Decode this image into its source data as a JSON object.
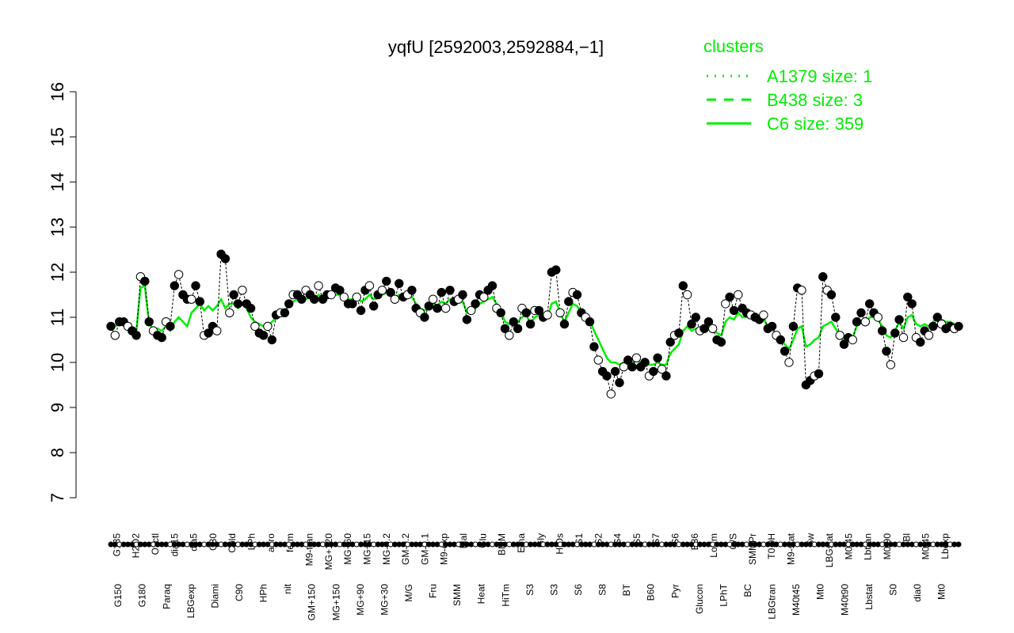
{
  "chart_data": {
    "type": "scatter",
    "title": "yqfU [2592003,2592884,−1]",
    "xlabel": "",
    "ylabel": "",
    "ylim": [
      7,
      16
    ],
    "yticks": [
      7,
      8,
      9,
      10,
      11,
      12,
      13,
      14,
      15,
      16
    ],
    "grid": false,
    "legend": {
      "title": "clusters",
      "position": "top-right",
      "color": "#00ee00",
      "entries": [
        {
          "label": "A1379 size: 1",
          "style": "dotted"
        },
        {
          "label": "B438 size: 3",
          "style": "dashed"
        },
        {
          "label": "C6 size: 359",
          "style": "solid"
        }
      ]
    },
    "top_labels": [
      "G135",
      "H2O2",
      "Oxctl",
      "dia15",
      "dia5",
      "C30",
      "Cold",
      "LPh",
      "aero",
      "ferm",
      "M9-tran",
      "MG+120",
      "MG+60",
      "MG+15",
      "MG-0.2",
      "GM-0.2",
      "GM-0.1",
      "M9-exp",
      "Mal",
      "Glu",
      "BMM",
      "Etha",
      "Gly",
      "HiOs",
      "S1",
      "S2",
      "S4",
      "S5",
      "S7",
      "S6",
      "B36",
      "LoTm",
      "G/S",
      "SMMPr",
      "T0.0H",
      "M9-stat",
      "Sw",
      "LBGstat",
      "M0t45",
      "Lbtran",
      "M0t90",
      "Bl",
      "M0t45",
      "Lbexp"
    ],
    "bottom_labels": [
      "G150",
      "G180",
      "Paraq",
      "LBGexp",
      "Diami",
      "C90",
      "HPh",
      "nit",
      "GM+150",
      "MG+150",
      "MG+90",
      "MG+30",
      "M/G",
      "Fru",
      "SMM",
      "Heat",
      "HiTm",
      "S3",
      "S3",
      "S6",
      "S8",
      "BT",
      "B60",
      "Pyr",
      "Glucon",
      "LPhT",
      "BC",
      "LBGtran",
      "M40t45",
      "Mt0",
      "M40t90",
      "Lbstat",
      "S0",
      "dia0",
      "Mt0"
    ],
    "series": [
      {
        "values": [
          10.8,
          10.6,
          10.9,
          10.9,
          10.8,
          10.7,
          10.6,
          11.9,
          11.8,
          10.9,
          10.7,
          10.6,
          10.55,
          10.9,
          10.8,
          11.7,
          11.95,
          11.5,
          11.4,
          11.4,
          11.7,
          11.35,
          10.6,
          10.65,
          10.8,
          10.7,
          12.4,
          12.3,
          11.1,
          11.5,
          11.3,
          11.6,
          11.3,
          11.2,
          10.8,
          10.65,
          10.6,
          10.8,
          10.5,
          11.05,
          11.1,
          11.1,
          11.3,
          11.5,
          11.5,
          11.4,
          11.6,
          11.5,
          11.4,
          11.7,
          11.4,
          11.5,
          11.5,
          11.65,
          11.6,
          11.45,
          11.3,
          11.3,
          11.45,
          11.15,
          11.6,
          11.7,
          11.25,
          11.5,
          11.6,
          11.8,
          11.55,
          11.4,
          11.75,
          11.45,
          11.5,
          11.6,
          11.2,
          11.1,
          11.0,
          11.25,
          11.4,
          11.2,
          11.55,
          11.2,
          11.6,
          11.35,
          11.4,
          11.5,
          10.95,
          11.15,
          11.3,
          11.5,
          11.45,
          11.6,
          11.7,
          11.2,
          11.1,
          10.75,
          10.6,
          10.9,
          10.75,
          11.2,
          11.1,
          10.85,
          11.15,
          11.15,
          11.0,
          11.05,
          12.0,
          12.05,
          11.1,
          10.85,
          11.35,
          11.55,
          11.5,
          11.1,
          11.0,
          10.9,
          10.35,
          10.05,
          9.8,
          9.7,
          9.3,
          9.8,
          9.55,
          9.9,
          10.05,
          9.9,
          10.1,
          9.9,
          10.0,
          9.7,
          9.8,
          10.1,
          9.85,
          9.7,
          10.45,
          10.6,
          10.65,
          11.7,
          11.5,
          10.85,
          11.0,
          10.7,
          10.75,
          10.9,
          10.75,
          10.5,
          10.45,
          11.3,
          11.45,
          11.15,
          11.5,
          11.2,
          11.1,
          11.05,
          11.0,
          10.95,
          11.05,
          10.75,
          10.8,
          10.6,
          10.5,
          10.25,
          10.0,
          10.8,
          11.65,
          11.6,
          9.5,
          9.6,
          9.7,
          9.75,
          11.9,
          11.6,
          11.5,
          11.0,
          10.6,
          10.4,
          10.55,
          10.5,
          10.9,
          11.1,
          10.9,
          11.3,
          11.1,
          11.0,
          10.7,
          10.25,
          9.95,
          10.65,
          10.95,
          10.55,
          11.45,
          11.3,
          10.55,
          10.45,
          10.7,
          10.6,
          10.8,
          11.0,
          10.85,
          10.75,
          10.8,
          10.75,
          10.8
        ]
      },
      {
        "values": [
          10.8,
          10.8,
          10.85,
          10.85,
          10.8,
          10.75,
          10.7,
          11.65,
          11.7,
          10.85,
          10.75,
          10.75,
          10.7,
          10.8,
          10.7,
          10.9,
          11.0,
          10.9,
          10.8,
          11.1,
          11.2,
          11.3,
          11.15,
          11.25,
          11.15,
          11.25,
          11.4,
          11.2,
          11.3,
          11.3,
          11.2,
          11.3,
          11.2,
          11.0,
          10.9,
          10.85,
          10.8,
          10.8,
          10.9,
          11.0,
          11.05,
          11.15,
          11.25,
          11.35,
          11.4,
          11.4,
          11.4,
          11.45,
          11.4,
          11.5,
          11.45,
          11.5,
          11.45,
          11.5,
          11.5,
          11.45,
          11.4,
          11.4,
          11.45,
          11.35,
          11.4,
          11.5,
          11.4,
          11.45,
          11.5,
          11.55,
          11.5,
          11.45,
          11.5,
          11.45,
          11.45,
          11.45,
          11.3,
          11.2,
          11.15,
          11.2,
          11.3,
          11.25,
          11.35,
          11.3,
          11.4,
          11.35,
          11.35,
          11.35,
          11.1,
          11.1,
          11.2,
          11.3,
          11.35,
          11.4,
          11.45,
          11.3,
          11.15,
          10.9,
          10.85,
          10.95,
          10.9,
          11.0,
          11.05,
          10.85,
          11.0,
          11.05,
          11.0,
          11.0,
          11.3,
          11.35,
          11.1,
          10.9,
          11.1,
          11.3,
          11.25,
          11.1,
          11.0,
          10.95,
          10.7,
          10.5,
          10.3,
          10.1,
          10.0,
          10.0,
          9.95,
          10.0,
          10.05,
          10.0,
          10.05,
          10.0,
          10.0,
          9.95,
          9.95,
          10.0,
          9.95,
          9.95,
          10.2,
          10.3,
          10.4,
          10.7,
          10.8,
          10.7,
          10.75,
          10.7,
          10.7,
          10.8,
          10.75,
          10.65,
          10.6,
          10.9,
          11.0,
          10.95,
          11.1,
          11.0,
          11.0,
          11.0,
          10.95,
          10.95,
          10.95,
          10.8,
          10.75,
          10.6,
          10.5,
          10.4,
          10.3,
          10.5,
          10.75,
          10.8,
          10.35,
          10.4,
          10.5,
          10.55,
          10.8,
          10.85,
          10.9,
          10.75,
          10.6,
          10.5,
          10.55,
          10.55,
          10.8,
          10.9,
          10.85,
          11.0,
          11.0,
          10.95,
          10.8,
          10.6,
          10.55,
          10.7,
          10.9,
          10.75,
          11.0,
          11.05,
          10.85,
          10.8,
          10.85,
          10.8,
          10.9,
          11.0,
          10.95,
          10.9,
          10.9,
          10.85,
          10.85
        ]
      }
    ]
  }
}
